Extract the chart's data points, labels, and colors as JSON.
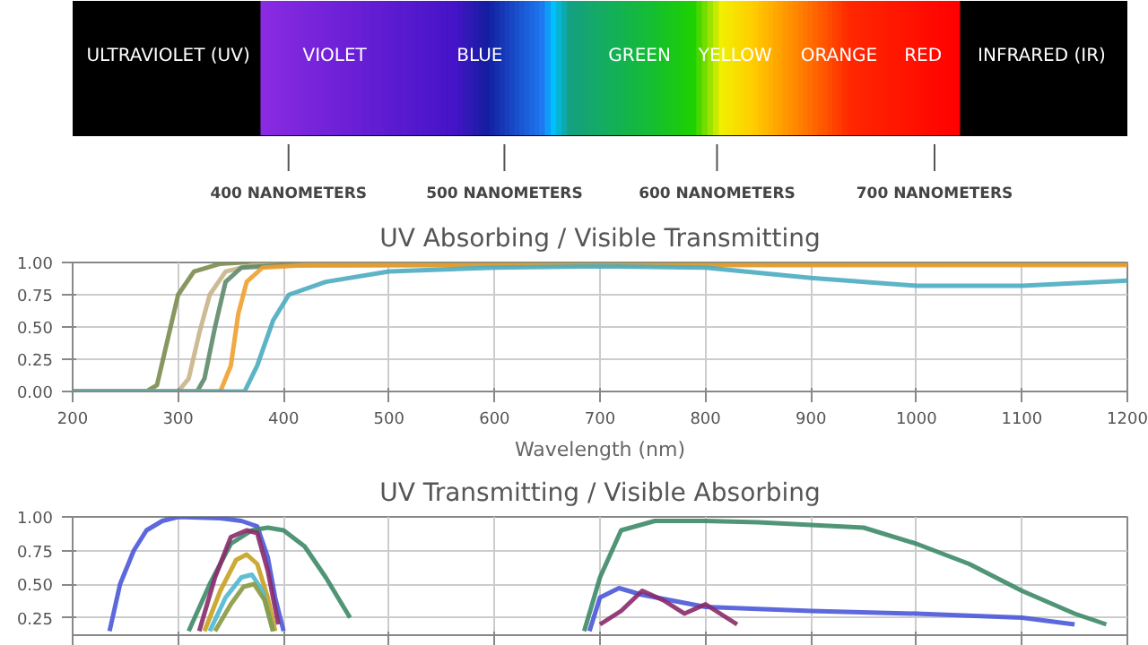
{
  "chart_data": [
    {
      "type": "other",
      "annotations": [
        "ULTRAVIOLET (UV)",
        "VIOLET",
        "BLUE",
        "GREEN",
        "YELLOW",
        "ORANGE",
        "RED",
        "INFRARED (IR)",
        "400 NANOMETERS",
        "500 NANOMETERS",
        "600 NANOMETERS",
        "700 NANOMETERS"
      ]
    },
    {
      "type": "line",
      "title": "UV Absorbing / Visible Transmitting",
      "xlabel": "Wavelength (nm)",
      "xlim": [
        200,
        1200
      ],
      "ylim": [
        0,
        1
      ],
      "xticks": [
        200,
        300,
        400,
        500,
        600,
        700,
        800,
        900,
        1000,
        1100,
        1200
      ],
      "yticks": [
        {
          "value": 0,
          "label": "0.00"
        },
        {
          "value": 0.25,
          "label": "0.25"
        },
        {
          "value": 0.5,
          "label": "0.50"
        },
        {
          "value": 0.75,
          "label": "0.75"
        },
        {
          "value": 1,
          "label": "1.00"
        }
      ],
      "grid": true,
      "series": [
        {
          "color": "#7a8c4e",
          "x": [
            200,
            270,
            280,
            290,
            300,
            315,
            340,
            360,
            1200
          ],
          "values": [
            0,
            0,
            0.05,
            0.4,
            0.75,
            0.93,
            0.99,
            1.0,
            1.0
          ]
        },
        {
          "color": "#c8b48a",
          "x": [
            200,
            300,
            310,
            320,
            330,
            345,
            370,
            1200
          ],
          "values": [
            0,
            0,
            0.1,
            0.45,
            0.75,
            0.93,
            0.98,
            0.99
          ]
        },
        {
          "color": "#5e8a6a",
          "x": [
            200,
            318,
            325,
            335,
            345,
            360,
            400,
            1200
          ],
          "values": [
            0,
            0,
            0.1,
            0.5,
            0.85,
            0.96,
            0.98,
            0.99
          ]
        },
        {
          "color": "#f0a030",
          "x": [
            200,
            340,
            350,
            357,
            365,
            380,
            420,
            1200
          ],
          "values": [
            0,
            0,
            0.2,
            0.6,
            0.85,
            0.96,
            0.98,
            0.98
          ]
        },
        {
          "color": "#4aacc0",
          "x": [
            200,
            363,
            375,
            390,
            405,
            440,
            500,
            600,
            700,
            800,
            900,
            1000,
            1100,
            1200
          ],
          "values": [
            0,
            0,
            0.2,
            0.55,
            0.75,
            0.85,
            0.93,
            0.96,
            0.97,
            0.96,
            0.88,
            0.82,
            0.82,
            0.86
          ]
        }
      ]
    },
    {
      "type": "line",
      "title": "UV Transmitting / Visible Absorbing",
      "xlim": [
        200,
        1200
      ],
      "ylim": [
        0.12,
        1
      ],
      "xticks": [
        200,
        300,
        400,
        500,
        600,
        700,
        800,
        900,
        1000,
        1100,
        1200
      ],
      "yticks": [
        {
          "value": 0.25,
          "label": "0.25"
        },
        {
          "value": 0.5,
          "label": "0.50"
        },
        {
          "value": 0.75,
          "label": "0.75"
        },
        {
          "value": 1,
          "label": "1.00"
        }
      ],
      "grid": true,
      "tick_labels": "y",
      "series": [
        {
          "color": "#4a58d8",
          "x": [
            235,
            245,
            258,
            270,
            285,
            300,
            340,
            360,
            375,
            385,
            392,
            400,
            410,
            690,
            700,
            718,
            740,
            780,
            800,
            900,
            1000,
            1100,
            1150
          ],
          "values": [
            0.15,
            0.5,
            0.75,
            0.9,
            0.97,
            1.0,
            0.99,
            0.97,
            0.93,
            0.7,
            0.4,
            0.15,
            null,
            0.15,
            0.4,
            0.47,
            0.42,
            0.36,
            0.33,
            0.3,
            0.28,
            0.25,
            0.2
          ]
        },
        {
          "color": "#3e8a68",
          "x": [
            310,
            330,
            350,
            370,
            385,
            400,
            420,
            440,
            463,
            475,
            685,
            700,
            720,
            752,
            800,
            850,
            950,
            1000,
            1050,
            1100,
            1150,
            1180
          ],
          "values": [
            0.15,
            0.5,
            0.8,
            0.9,
            0.92,
            0.9,
            0.78,
            0.55,
            0.25,
            null,
            0.15,
            0.55,
            0.9,
            0.97,
            0.97,
            0.96,
            0.92,
            0.8,
            0.65,
            0.45,
            0.28,
            0.2
          ]
        },
        {
          "color": "#8a2a6a",
          "x": [
            320,
            335,
            350,
            365,
            375,
            385,
            395,
            410,
            700,
            720,
            740,
            760,
            780,
            800,
            830
          ],
          "values": [
            0.15,
            0.55,
            0.85,
            0.9,
            0.88,
            0.6,
            0.2,
            null,
            0.2,
            0.3,
            0.45,
            0.38,
            0.28,
            0.35,
            0.2
          ]
        },
        {
          "color": "#c8a020",
          "x": [
            325,
            340,
            355,
            365,
            375,
            385,
            392
          ],
          "values": [
            0.15,
            0.45,
            0.68,
            0.72,
            0.65,
            0.4,
            0.15
          ]
        },
        {
          "color": "#50b8d0",
          "x": [
            330,
            345,
            360,
            370,
            380,
            390
          ],
          "values": [
            0.15,
            0.4,
            0.55,
            0.57,
            0.45,
            0.15
          ]
        },
        {
          "color": "#8a9a40",
          "x": [
            335,
            350,
            362,
            372,
            382,
            390
          ],
          "values": [
            0.15,
            0.35,
            0.48,
            0.5,
            0.38,
            0.15
          ]
        }
      ]
    }
  ]
}
